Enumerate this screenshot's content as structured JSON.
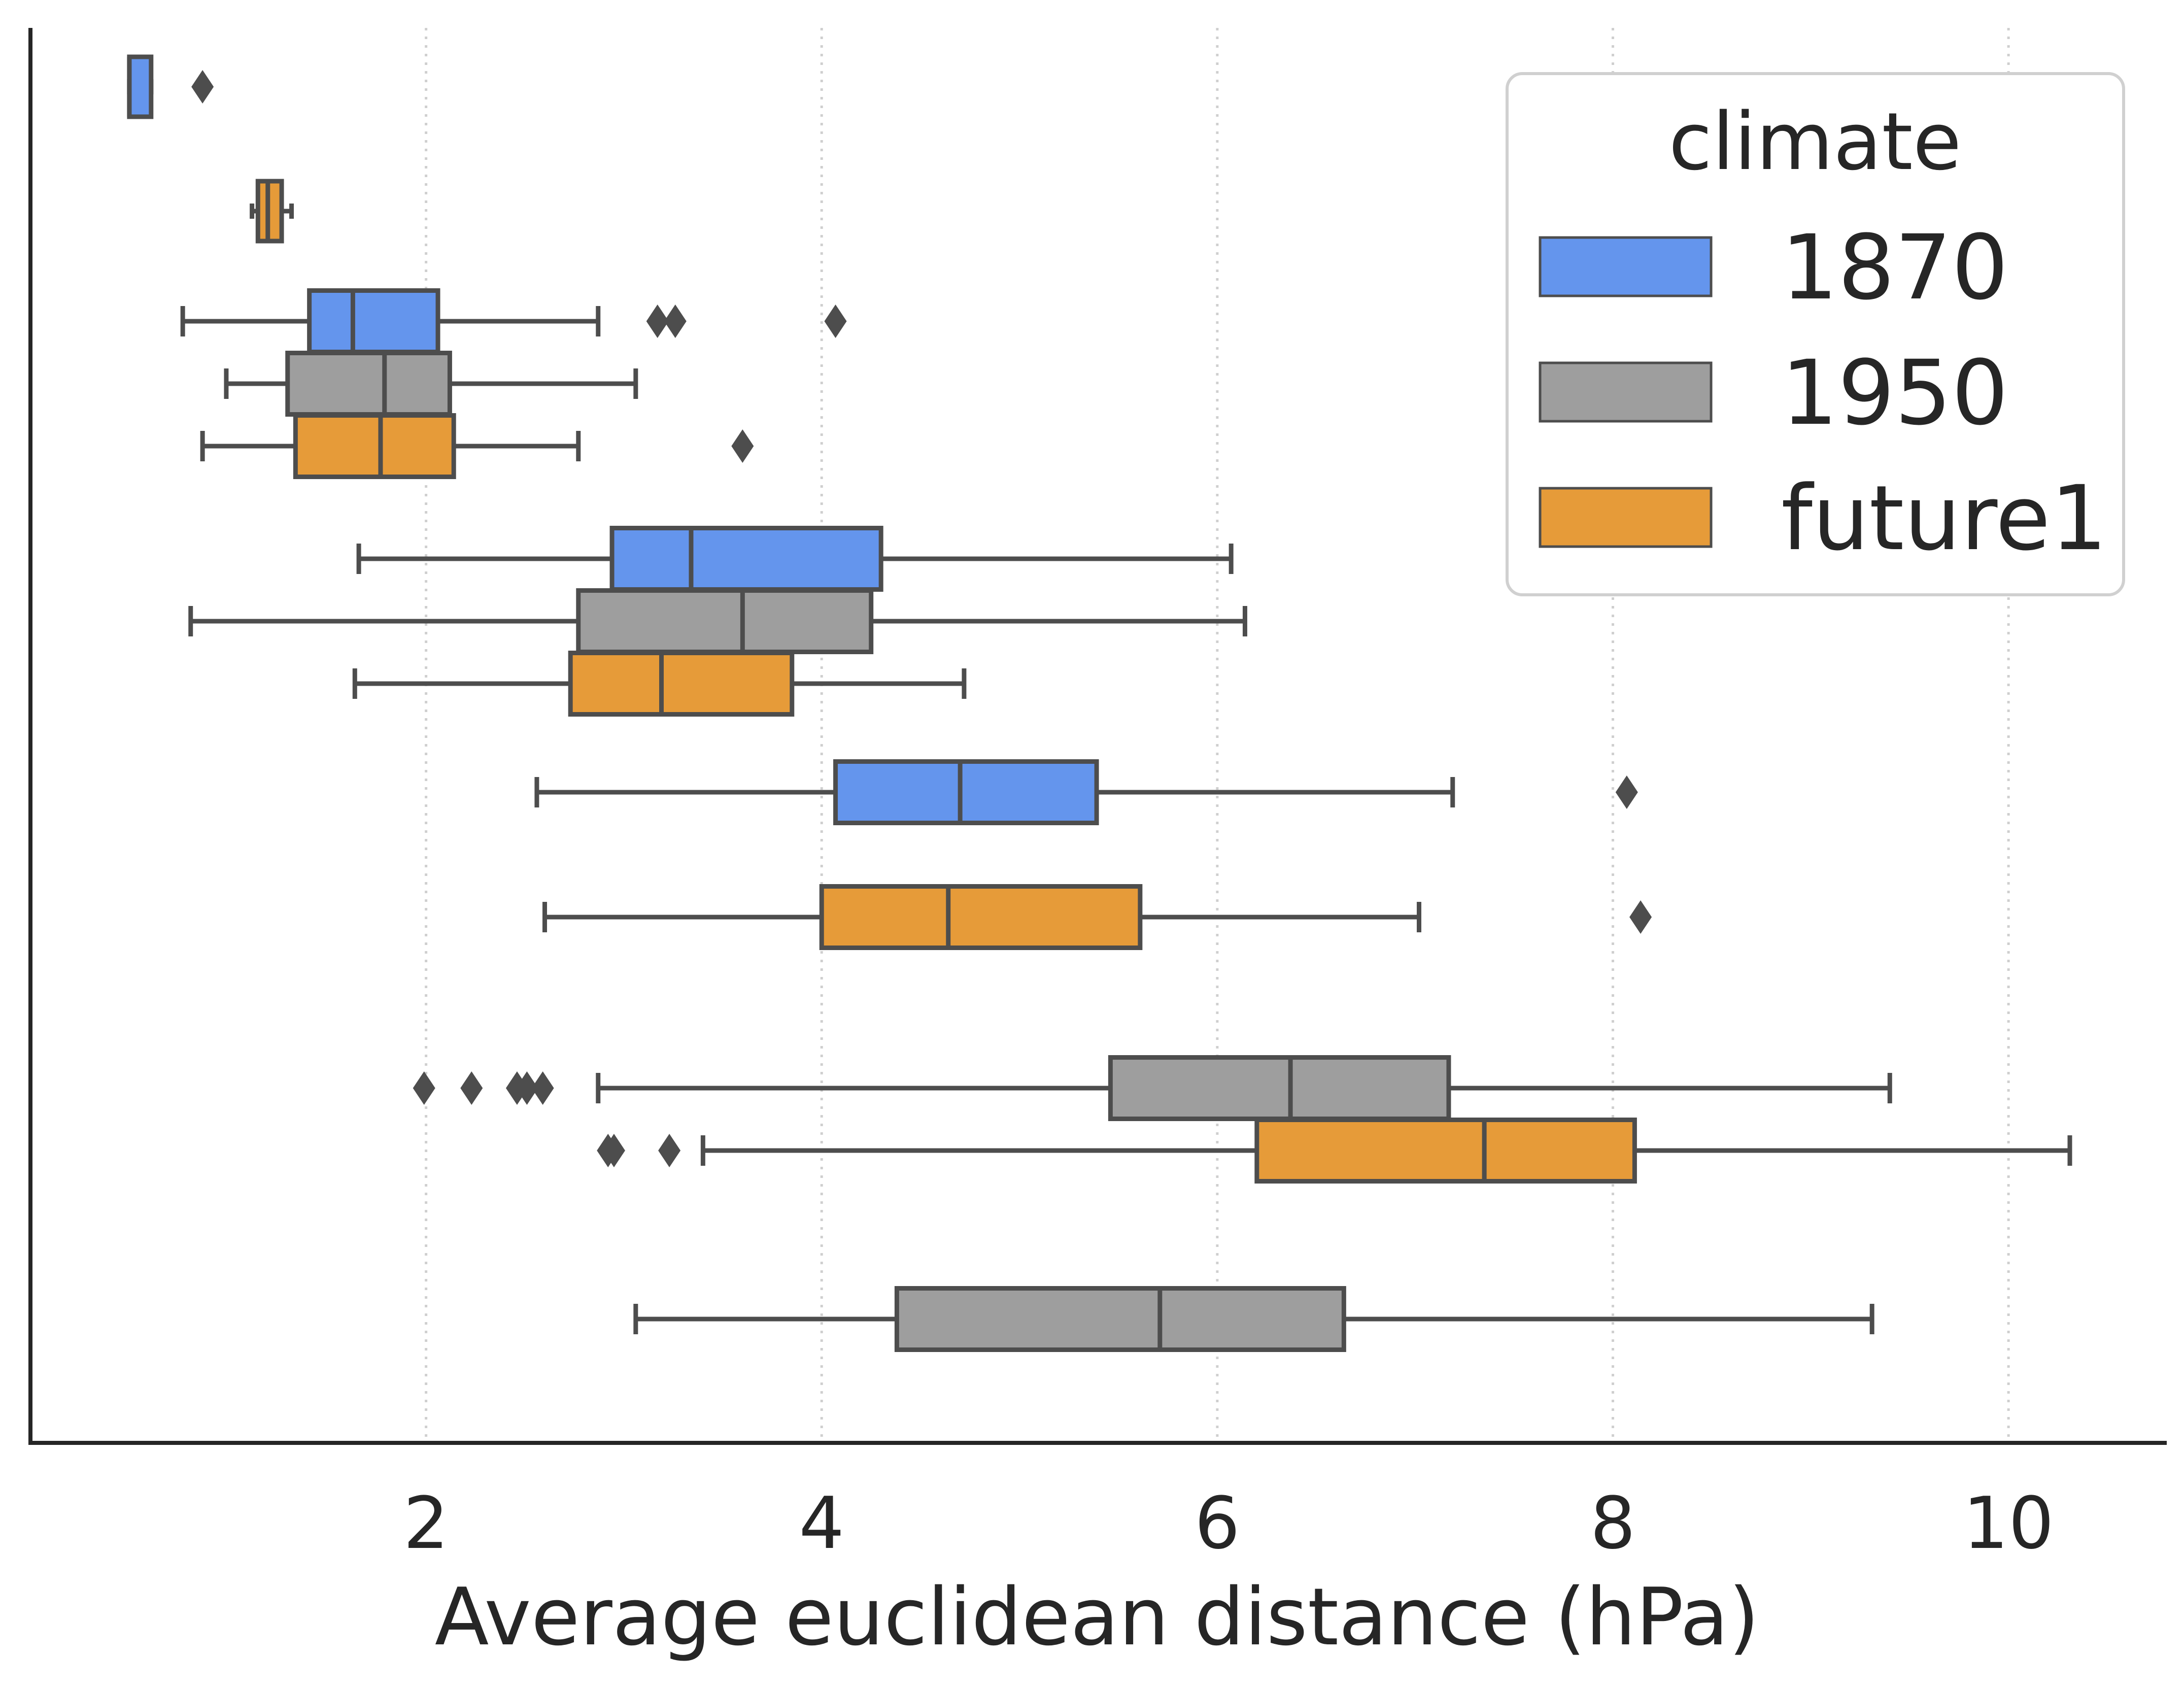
{
  "chart_data": {
    "type": "boxplot",
    "orientation": "horizontal",
    "xlabel": "Average euclidean distance (hPa)",
    "ylabel": "",
    "xlim": [
      0,
      10.8
    ],
    "xticks": [
      2,
      4,
      6,
      8,
      10
    ],
    "grid": "vertical dotted",
    "legend": {
      "title": "climate",
      "position": "top-right"
    },
    "series": [
      {
        "name": "1870",
        "color": "#6495ED"
      },
      {
        "name": "1950",
        "color": "#9E9E9E"
      },
      {
        "name": "future1",
        "color": "#E69B39"
      }
    ],
    "boxes": [
      {
        "group": 0,
        "series": "1870",
        "whislo": 0.5,
        "q1": 0.5,
        "med": 0.5,
        "q3": 0.61,
        "whishi": 0.61,
        "fliers": [
          0.87
        ]
      },
      {
        "group": 1,
        "series": "future1",
        "whislo": 1.12,
        "q1": 1.15,
        "med": 1.2,
        "q3": 1.27,
        "whishi": 1.32,
        "fliers": []
      },
      {
        "group": 2,
        "series": "1870",
        "whislo": 0.77,
        "q1": 1.41,
        "med": 1.63,
        "q3": 2.06,
        "whishi": 2.87,
        "fliers": [
          3.17,
          3.26,
          4.07
        ]
      },
      {
        "group": 2,
        "series": "1950",
        "whislo": 0.99,
        "q1": 1.3,
        "med": 1.79,
        "q3": 2.12,
        "whishi": 3.06,
        "fliers": []
      },
      {
        "group": 2,
        "series": "future1",
        "whislo": 0.87,
        "q1": 1.34,
        "med": 1.77,
        "q3": 2.14,
        "whishi": 2.77,
        "fliers": [
          3.6
        ]
      },
      {
        "group": 3,
        "series": "1870",
        "whislo": 1.66,
        "q1": 2.94,
        "med": 3.34,
        "q3": 4.3,
        "whishi": 6.07,
        "fliers": []
      },
      {
        "group": 3,
        "series": "1950",
        "whislo": 0.81,
        "q1": 2.77,
        "med": 3.6,
        "q3": 4.25,
        "whishi": 6.14,
        "fliers": []
      },
      {
        "group": 3,
        "series": "future1",
        "whislo": 1.64,
        "q1": 2.73,
        "med": 3.19,
        "q3": 3.85,
        "whishi": 4.72,
        "fliers": []
      },
      {
        "group": 4,
        "series": "1870",
        "whislo": 2.56,
        "q1": 4.07,
        "med": 4.7,
        "q3": 5.39,
        "whishi": 7.19,
        "fliers": [
          8.07
        ]
      },
      {
        "group": 4,
        "series": "future1",
        "whislo": 2.6,
        "q1": 4.0,
        "med": 4.64,
        "q3": 5.61,
        "whishi": 7.02,
        "fliers": [
          8.14
        ]
      },
      {
        "group": 5,
        "series": "1950",
        "whislo": 2.87,
        "q1": 5.46,
        "med": 6.37,
        "q3": 7.17,
        "whishi": 9.4,
        "fliers": [
          1.99,
          2.23,
          2.46,
          2.51,
          2.59
        ]
      },
      {
        "group": 5,
        "series": "future1",
        "whislo": 3.4,
        "q1": 6.2,
        "med": 7.35,
        "q3": 8.11,
        "whishi": 10.31,
        "fliers": [
          2.92,
          2.95,
          3.23
        ]
      },
      {
        "group": 6,
        "series": "1950",
        "whislo": 3.06,
        "q1": 4.38,
        "med": 5.71,
        "q3": 6.64,
        "whishi": 9.31,
        "fliers": []
      }
    ]
  }
}
